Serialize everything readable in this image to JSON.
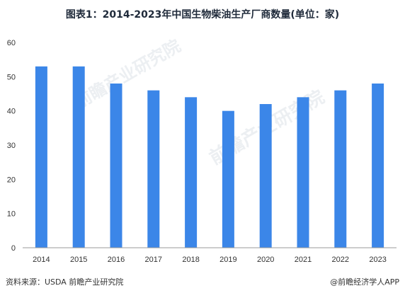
{
  "title": "图表1：2014-2023年中国生物柴油生产厂商数量(单位：家)",
  "footer": {
    "source": "资料来源：USDA 前瞻产业研究院",
    "brand": "@前瞻经济学人APP"
  },
  "watermark": "前瞻产业研究院",
  "colors": {
    "bar": "#3B86E8",
    "axis": "#999999",
    "text": "#333333"
  },
  "chart_data": {
    "type": "bar",
    "title": "图表1：2014-2023年中国生物柴油生产厂商数量(单位：家)",
    "categories": [
      "2014",
      "2015",
      "2016",
      "2017",
      "2018",
      "2019",
      "2020",
      "2021",
      "2022",
      "2023"
    ],
    "values": [
      53,
      53,
      48,
      46,
      44,
      40,
      42,
      44,
      46,
      48
    ],
    "ylim": [
      0,
      60
    ],
    "yticks": [
      0,
      10,
      20,
      30,
      40,
      50,
      60
    ],
    "grid": false,
    "legend": "none"
  }
}
